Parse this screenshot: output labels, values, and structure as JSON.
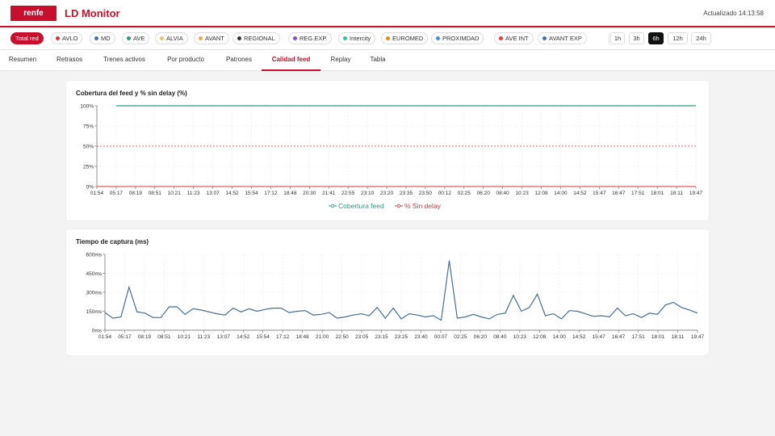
{
  "header": {
    "logo": "renfe",
    "title": "LD Monitor",
    "updated": "Actualizado 14:13:58"
  },
  "filters": {
    "pills": [
      {
        "label": "Total red",
        "active": true,
        "color": ""
      },
      {
        "label": "AVLO",
        "color": "#d9363e"
      },
      {
        "label": "MD",
        "color": "#4a6ea8"
      },
      {
        "label": "AVE",
        "color": "#2a9b7e"
      },
      {
        "label": "ALVIA",
        "color": "#e8c66a"
      },
      {
        "label": "AVANT",
        "color": "#e8a85a"
      },
      {
        "label": "REGIONAL",
        "color": "#333333"
      },
      {
        "label": "REG.EXP.",
        "color": "#8a4ad0"
      },
      {
        "label": "Intercity",
        "color": "#2ac4a0"
      },
      {
        "label": "EUROMED",
        "color": "#e88a1a"
      },
      {
        "label": "PROXIMDAD",
        "color": "#4a8ae8"
      },
      {
        "label": "AVE INT",
        "color": "#e83a3a"
      },
      {
        "label": "AVANT EXP",
        "color": "#4a6ea8"
      }
    ],
    "ranges": [
      {
        "label": "1h",
        "active": false
      },
      {
        "label": "3h",
        "active": false
      },
      {
        "label": "6h",
        "active": true
      },
      {
        "label": "12h",
        "active": false
      },
      {
        "label": "24h",
        "active": false
      }
    ]
  },
  "tabs": [
    "Resumen",
    "Retrasos",
    "Trenes activos",
    "Por producto",
    "Patrones",
    "Calidad feed",
    "Replay",
    "Tabla"
  ],
  "active_tab": "Calidad feed",
  "chart_data": [
    {
      "type": "line",
      "title": "Cobertura del feed y % sin delay (%)",
      "x": [
        "01:54",
        "05:17",
        "08:19",
        "08:51",
        "10:21",
        "11:23",
        "13:07",
        "14:52",
        "15:54",
        "17:12",
        "18:48",
        "20:30",
        "21:41",
        "22:55",
        "23:10",
        "23:20",
        "23:35",
        "23:50",
        "00:12",
        "02:25",
        "06:20",
        "08:40",
        "10:23",
        "12:08",
        "14:00",
        "14:52",
        "15:47",
        "16:47",
        "17:51",
        "18:01",
        "18:11",
        "19:47"
      ],
      "y_ticks": [
        "0%",
        "25%",
        "50%",
        "75%",
        "100%"
      ],
      "ylim": [
        0,
        100
      ],
      "reference_line": 50,
      "series": [
        {
          "name": "Cobertura feed",
          "color": "#2a9b7e",
          "values": [
            null,
            100,
            100,
            100,
            100,
            100,
            100,
            100,
            100,
            100,
            100,
            100,
            100,
            100,
            100,
            100,
            100,
            100,
            100,
            100,
            100,
            100,
            100,
            100,
            100,
            100,
            100,
            100,
            100,
            100,
            100,
            100
          ]
        },
        {
          "name": "% Sin delay",
          "color": "#d9363e",
          "values": [
            0,
            0,
            0,
            0,
            0,
            0,
            0,
            0,
            0,
            0,
            0,
            0,
            0,
            0,
            0,
            0,
            0,
            0,
            0,
            0,
            0,
            0,
            0,
            0,
            0,
            0,
            0,
            0,
            0,
            0,
            0,
            0
          ]
        }
      ],
      "legend": "bottom-center",
      "grid": true
    },
    {
      "type": "line",
      "title": "Tiempo de captura (ms)",
      "x_ticks": [
        "01:54",
        "05:17",
        "08:19",
        "08:51",
        "10:21",
        "11:23",
        "13:07",
        "14:52",
        "15:54",
        "17:12",
        "18:48",
        "21:00",
        "22:50",
        "23:05",
        "23:15",
        "23:25",
        "23:40",
        "00:07",
        "02:25",
        "06:20",
        "08:40",
        "10:23",
        "12:08",
        "14:00",
        "14:52",
        "15:47",
        "16:47",
        "17:51",
        "18:01",
        "18:11",
        "19:47"
      ],
      "y_ticks": [
        "0ms",
        "150ms",
        "300ms",
        "450ms",
        "600ms"
      ],
      "ylim": [
        0,
        600
      ],
      "series": [
        {
          "name": "Tiempo de captura",
          "color": "#4a6e8f",
          "values": [
            140,
            95,
            105,
            340,
            145,
            135,
            100,
            100,
            185,
            185,
            125,
            170,
            160,
            145,
            130,
            120,
            175,
            145,
            170,
            150,
            165,
            175,
            175,
            140,
            150,
            155,
            120,
            125,
            140,
            95,
            105,
            120,
            130,
            115,
            180,
            95,
            175,
            90,
            130,
            120,
            105,
            115,
            80,
            550,
            95,
            105,
            125,
            105,
            90,
            125,
            135,
            275,
            150,
            180,
            285,
            115,
            130,
            90,
            155,
            150,
            130,
            110,
            115,
            105,
            175,
            115,
            130,
            100,
            135,
            125,
            200,
            220,
            180,
            160,
            135
          ]
        }
      ],
      "grid": true
    }
  ]
}
